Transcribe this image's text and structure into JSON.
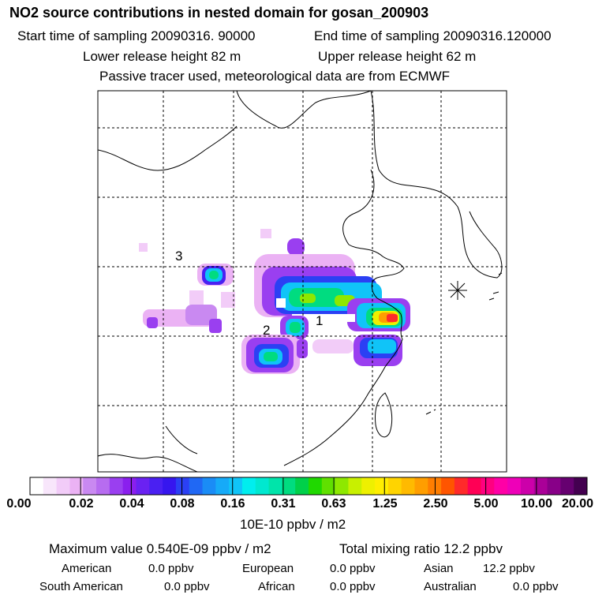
{
  "header": {
    "title": "NO2 source contributions in nested domain for gosan_200903",
    "start_time": "Start time of sampling 20090316. 90000",
    "end_time": "End time of sampling 20090316.120000",
    "lower_height": "Lower release height   82 m",
    "upper_height": "Upper release height   62 m",
    "tracer_note": "Passive tracer used, meteorological data are from ECMWF"
  },
  "map": {
    "region_labels": [
      "1",
      "2",
      "3"
    ],
    "receptor_symbol": "asterisk-icon"
  },
  "colorbar": {
    "tick_labels": [
      "0.00",
      "0.02",
      "0.04",
      "0.08",
      "0.16",
      "0.31",
      "0.63",
      "1.25",
      "2.50",
      "5.00",
      "10.00",
      "20.00"
    ],
    "colors": [
      "#ffffff",
      "#f8e6fb",
      "#f2ccf8",
      "#ebb2f4",
      "#c989f1",
      "#b76cf0",
      "#9a3ff0",
      "#8a1fee",
      "#6a22f2",
      "#4a20f2",
      "#3616ef",
      "#2b40f4",
      "#2068f4",
      "#1a8cf6",
      "#16aaf8",
      "#10c4f8",
      "#00eeee",
      "#00e8d0",
      "#00e4aa",
      "#00dc80",
      "#00d04a",
      "#20d800",
      "#60e000",
      "#8ee800",
      "#c8f000",
      "#eef000",
      "#ffee00",
      "#ffd400",
      "#ffba00",
      "#ff9e00",
      "#ff7e00",
      "#ff5500",
      "#ff2a2a",
      "#ff0055",
      "#ff0080",
      "#ff00a6",
      "#ee00b8",
      "#cc00aa",
      "#aa0098",
      "#880088",
      "#660070",
      "#440050"
    ],
    "units": "10E-10 ppbv / m2"
  },
  "stats": {
    "max_value": "Maximum value  0.540E-09 ppbv / m2",
    "total_mixing": "Total mixing ratio       12.2 ppbv",
    "rows": [
      [
        {
          "label": "American",
          "value": "0.0 ppbv"
        },
        {
          "label": "European",
          "value": "0.0 ppbv"
        },
        {
          "label": "Asian",
          "value": "12.2 ppbv"
        }
      ],
      [
        {
          "label": "South American",
          "value": "0.0 ppbv"
        },
        {
          "label": "African",
          "value": "0.0 ppbv"
        },
        {
          "label": "Australian",
          "value": "0.0 ppbv"
        }
      ]
    ]
  }
}
